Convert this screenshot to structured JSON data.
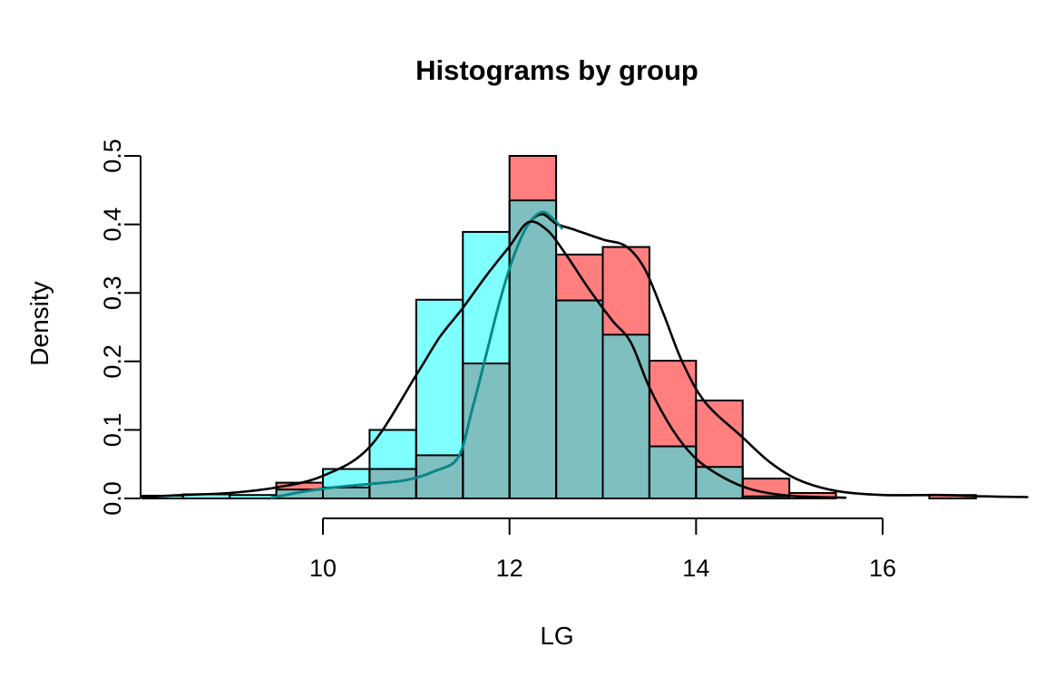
{
  "chart": {
    "title": "Histograms by group",
    "xlabel": "LG",
    "ylabel": "Density"
  },
  "chart_data": {
    "type": "bar",
    "subtype": "overlaid-histograms-with-density-curves",
    "title": "Histograms by group",
    "xlabel": "LG",
    "ylabel": "Density",
    "x_ticks": [
      10,
      12,
      14,
      16
    ],
    "y_tick_labels": [
      "0.0",
      "0.1",
      "0.2",
      "0.3",
      "0.4",
      "0.5"
    ],
    "y_tick_values": [
      0.0,
      0.1,
      0.2,
      0.3,
      0.4,
      0.5
    ],
    "xlim": [
      8.0,
      17.6
    ],
    "ylim": [
      0,
      0.52
    ],
    "grid": false,
    "legend": "none",
    "bin_width": 0.5,
    "bin_starts": [
      8.0,
      8.5,
      9.0,
      9.5,
      10.0,
      10.5,
      11.0,
      11.5,
      12.0,
      12.5,
      13.0,
      13.5,
      14.0,
      14.5,
      15.0,
      15.5,
      16.0,
      16.5
    ],
    "series": [
      {
        "name": "red-group-histogram",
        "fill": "rgba(255,0,0,0.5)",
        "rendered_color": "#ff8080",
        "densities": [
          0,
          0,
          0,
          0.023,
          0.016,
          0.043,
          0.063,
          0.197,
          0.5,
          0.356,
          0.367,
          0.201,
          0.143,
          0.029,
          0.008,
          0,
          0,
          0.005
        ]
      },
      {
        "name": "cyan-group-histogram",
        "fill": "rgba(0,255,255,0.5)",
        "rendered_color": "#80ffff",
        "densities": [
          0.004,
          0.006,
          0.005,
          0.013,
          0.043,
          0.1,
          0.29,
          0.389,
          0.435,
          0.289,
          0.239,
          0.076,
          0.046,
          0.003,
          0,
          0,
          0,
          0
        ]
      }
    ],
    "overlap_rendered_color": "#80bfbf",
    "bar_outline_color": "#000000",
    "curves": [
      {
        "name": "red-group-density-curve",
        "color": "#000000",
        "points": [
          [
            9.45,
            0.001
          ],
          [
            9.8,
            0.01
          ],
          [
            10.1,
            0.016
          ],
          [
            10.5,
            0.021
          ],
          [
            10.9,
            0.027
          ],
          [
            11.2,
            0.04
          ],
          [
            11.45,
            0.06
          ],
          [
            11.6,
            0.13
          ],
          [
            11.75,
            0.21
          ],
          [
            11.9,
            0.29
          ],
          [
            12.05,
            0.355
          ],
          [
            12.2,
            0.4
          ],
          [
            12.35,
            0.415
          ],
          [
            12.5,
            0.401
          ],
          [
            12.7,
            0.392
          ],
          [
            13.0,
            0.378
          ],
          [
            13.25,
            0.368
          ],
          [
            13.45,
            0.335
          ],
          [
            13.65,
            0.27
          ],
          [
            13.85,
            0.2
          ],
          [
            14.1,
            0.14
          ],
          [
            14.5,
            0.089
          ],
          [
            14.8,
            0.052
          ],
          [
            15.1,
            0.027
          ],
          [
            15.5,
            0.011
          ],
          [
            16.0,
            0.005
          ],
          [
            16.6,
            0.005
          ],
          [
            17.1,
            0.003
          ],
          [
            17.55,
            0.002
          ]
        ]
      },
      {
        "name": "teal-density-curve",
        "color": "#008b8b",
        "points": [
          [
            9.45,
            0.001
          ],
          [
            9.8,
            0.01
          ],
          [
            10.1,
            0.016
          ],
          [
            10.5,
            0.021
          ],
          [
            10.9,
            0.027
          ],
          [
            11.2,
            0.04
          ],
          [
            11.45,
            0.06
          ],
          [
            11.6,
            0.13
          ],
          [
            11.75,
            0.21
          ],
          [
            11.9,
            0.29
          ],
          [
            12.05,
            0.355
          ],
          [
            12.2,
            0.4
          ],
          [
            12.35,
            0.418
          ],
          [
            12.48,
            0.407
          ],
          [
            12.56,
            0.394
          ]
        ]
      },
      {
        "name": "cyan-group-density-curve",
        "color": "#000000",
        "points": [
          [
            8.05,
            0.002
          ],
          [
            8.5,
            0.005
          ],
          [
            9.0,
            0.008
          ],
          [
            9.5,
            0.016
          ],
          [
            10.0,
            0.033
          ],
          [
            10.5,
            0.075
          ],
          [
            11.0,
            0.18
          ],
          [
            11.25,
            0.235
          ],
          [
            11.5,
            0.278
          ],
          [
            11.75,
            0.325
          ],
          [
            12.0,
            0.368
          ],
          [
            12.2,
            0.403
          ],
          [
            12.4,
            0.392
          ],
          [
            12.6,
            0.357
          ],
          [
            12.85,
            0.306
          ],
          [
            13.1,
            0.26
          ],
          [
            13.3,
            0.228
          ],
          [
            13.5,
            0.162
          ],
          [
            13.75,
            0.1
          ],
          [
            14.0,
            0.058
          ],
          [
            14.3,
            0.03
          ],
          [
            14.6,
            0.013
          ],
          [
            15.0,
            0.004
          ],
          [
            15.6,
            0.001
          ]
        ]
      }
    ]
  }
}
